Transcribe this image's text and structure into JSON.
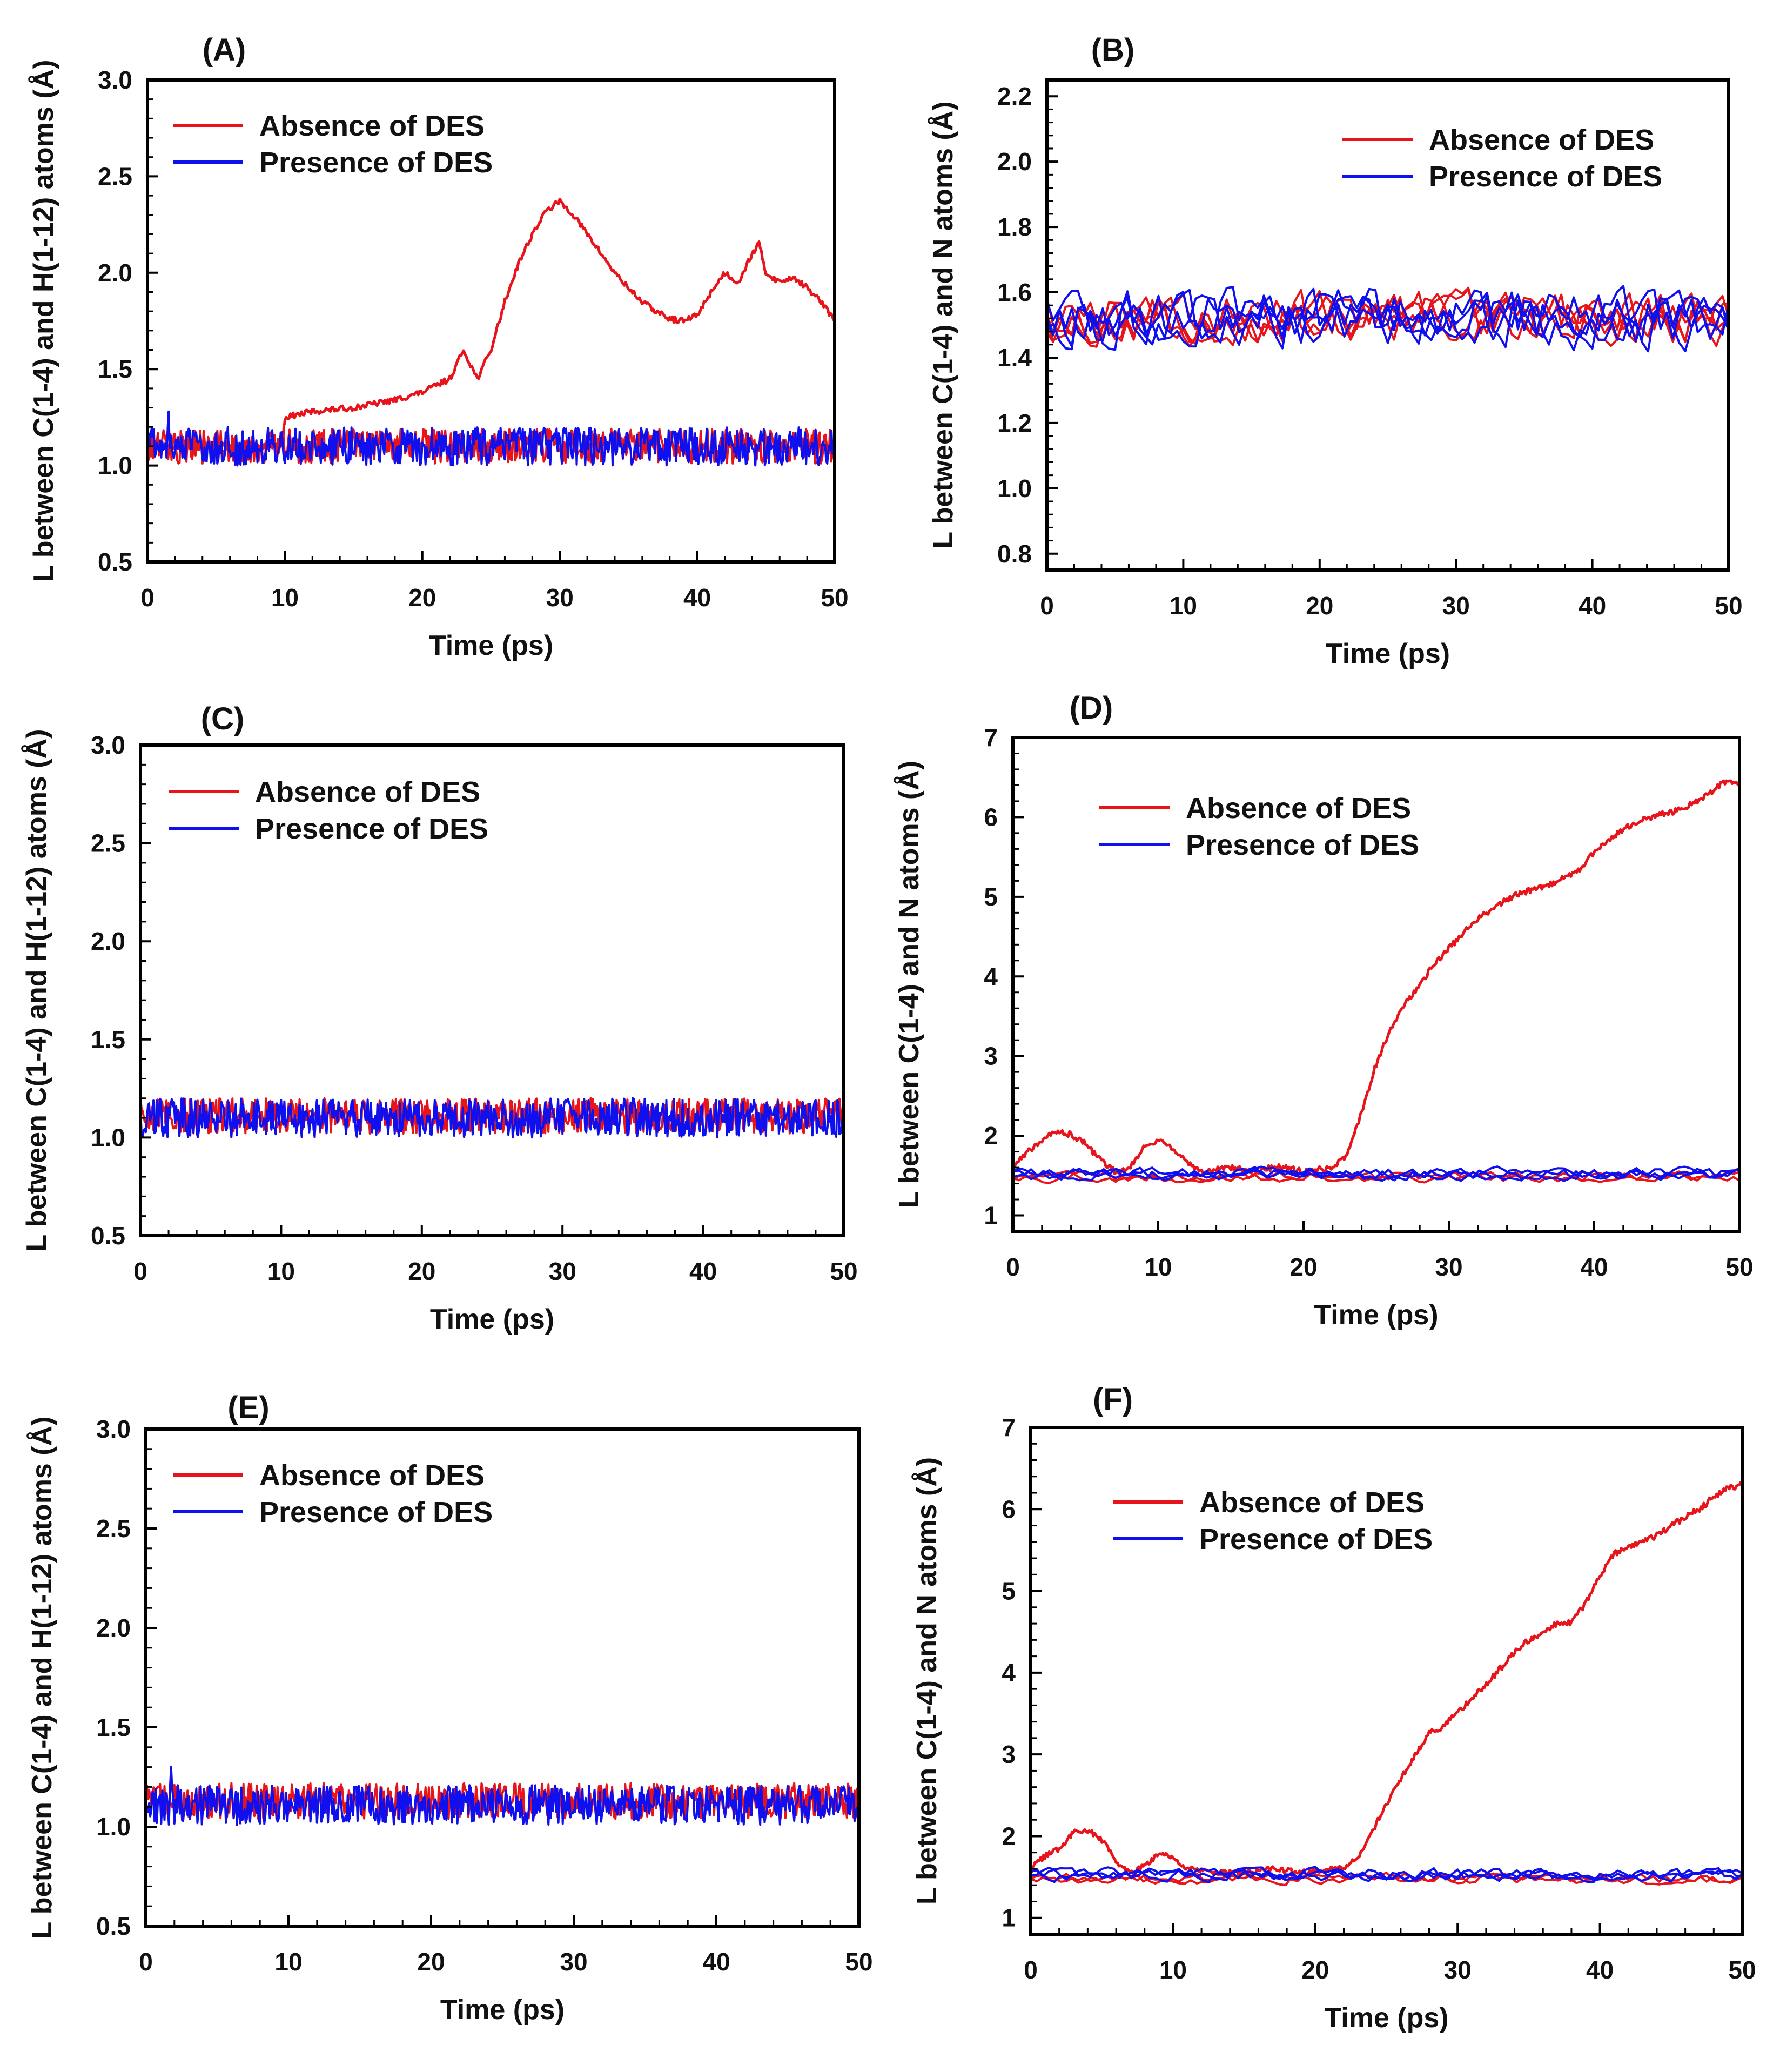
{
  "colors": {
    "absence": "#e8141c",
    "presence": "#1010ee",
    "frame": "#000000"
  },
  "chart_data": [
    {
      "id": "A",
      "type": "line",
      "title": "(A)",
      "xlabel": "Time (ps)",
      "ylabel": "L between C(1-4) and H(1-12) atoms (Å)",
      "xlim": [
        0,
        50
      ],
      "ylim": [
        0.5,
        3.0
      ],
      "xticks": [
        0,
        10,
        20,
        30,
        40,
        50
      ],
      "xtick_labels": [
        "0",
        "10",
        "20",
        "30",
        "40",
        "50"
      ],
      "yticks": [
        0.5,
        1.0,
        1.5,
        2.0,
        2.5,
        3.0
      ],
      "ytick_labels": [
        "0.5",
        "1.0",
        "1.5",
        "2.0",
        "2.5",
        "3.0"
      ],
      "legend_position": "top-left",
      "series": [
        {
          "name": "Absence of DES",
          "color_key": "absence",
          "points": [
            [
              0,
              1.1
            ],
            [
              5,
              1.1
            ],
            [
              9.8,
              1.1
            ],
            [
              10,
              1.25
            ],
            [
              12,
              1.28
            ],
            [
              15,
              1.3
            ],
            [
              18,
              1.34
            ],
            [
              20,
              1.38
            ],
            [
              22,
              1.45
            ],
            [
              23,
              1.6
            ],
            [
              24,
              1.45
            ],
            [
              25,
              1.6
            ],
            [
              26,
              1.85
            ],
            [
              27,
              2.05
            ],
            [
              28,
              2.2
            ],
            [
              29,
              2.32
            ],
            [
              30,
              2.37
            ],
            [
              31,
              2.3
            ],
            [
              32,
              2.2
            ],
            [
              33,
              2.1
            ],
            [
              34,
              2.0
            ],
            [
              35,
              1.92
            ],
            [
              36,
              1.85
            ],
            [
              37,
              1.8
            ],
            [
              38,
              1.76
            ],
            [
              39,
              1.75
            ],
            [
              40,
              1.78
            ],
            [
              41,
              1.9
            ],
            [
              42,
              2.0
            ],
            [
              43,
              1.95
            ],
            [
              44,
              2.1
            ],
            [
              44.5,
              2.15
            ],
            [
              45,
              2.0
            ],
            [
              46,
              1.95
            ],
            [
              47,
              1.98
            ],
            [
              48,
              1.92
            ],
            [
              49,
              1.85
            ],
            [
              50,
              1.75
            ]
          ]
        },
        {
          "name": "Absence of DES",
          "color_key": "absence",
          "noise_mean": 1.1,
          "noise_amp": 0.09,
          "count": 600,
          "width": 4,
          "legend": false
        },
        {
          "name": "Presence of DES",
          "color_key": "presence",
          "noise_mean": 1.1,
          "noise_amp": 0.1,
          "count": 650,
          "width": 4,
          "spike": [
            [
              1.5,
              1.28
            ]
          ]
        }
      ]
    },
    {
      "id": "B",
      "type": "line",
      "title": "(B)",
      "xlabel": "Time (ps)",
      "ylabel": "L between C(1-4) and N atoms (Å)",
      "xlim": [
        0,
        50
      ],
      "ylim": [
        0.75,
        2.25
      ],
      "xticks": [
        0,
        10,
        20,
        30,
        40,
        50
      ],
      "xtick_labels": [
        "0",
        "10",
        "20",
        "30",
        "40",
        "50"
      ],
      "yticks": [
        0.8,
        1.0,
        1.2,
        1.4,
        1.6,
        1.8,
        2.0,
        2.2
      ],
      "ytick_labels": [
        "0.8",
        "1.0",
        "1.2",
        "1.4",
        "1.6",
        "1.8",
        "2.0",
        "2.2"
      ],
      "legend_position": "top-right",
      "series": [
        {
          "name": "Absence of DES",
          "color_key": "absence",
          "noise_mean": 1.52,
          "noise_amp": 0.07,
          "count": 110,
          "width": 4,
          "strands": 4
        },
        {
          "name": "Presence of DES",
          "color_key": "presence",
          "noise_mean": 1.52,
          "noise_amp": 0.08,
          "count": 110,
          "width": 4,
          "strands": 4
        }
      ]
    },
    {
      "id": "C",
      "type": "line",
      "title": "(C)",
      "xlabel": "Time (ps)",
      "ylabel": "L between C(1-4) and H(1-12) atoms (Å)",
      "xlim": [
        0,
        50
      ],
      "ylim": [
        0.5,
        3.0
      ],
      "xticks": [
        0,
        10,
        20,
        30,
        40,
        50
      ],
      "xtick_labels": [
        "0",
        "10",
        "20",
        "30",
        "40",
        "50"
      ],
      "yticks": [
        0.5,
        1.0,
        1.5,
        2.0,
        2.5,
        3.0
      ],
      "ytick_labels": [
        "0.5",
        "1.0",
        "1.5",
        "2.0",
        "2.5",
        "3.0"
      ],
      "legend_position": "top-left",
      "series": [
        {
          "name": "Absence of DES",
          "color_key": "absence",
          "noise_mean": 1.11,
          "noise_amp": 0.09,
          "count": 650,
          "width": 4
        },
        {
          "name": "Presence of DES",
          "color_key": "presence",
          "noise_mean": 1.1,
          "noise_amp": 0.1,
          "count": 650,
          "width": 4
        }
      ]
    },
    {
      "id": "D",
      "type": "line",
      "title": "(D)",
      "xlabel": "Time (ps)",
      "ylabel": "L between C(1-4) and N atoms (Å)",
      "xlim": [
        0,
        50
      ],
      "ylim": [
        0.8,
        7.0
      ],
      "xticks": [
        0,
        10,
        20,
        30,
        40,
        50
      ],
      "xtick_labels": [
        "0",
        "10",
        "20",
        "30",
        "40",
        "50"
      ],
      "yticks": [
        1,
        2,
        3,
        4,
        5,
        6,
        7
      ],
      "ytick_labels": [
        "1",
        "2",
        "3",
        "4",
        "5",
        "6",
        "7"
      ],
      "legend_position": "top-left",
      "series": [
        {
          "name": "Absence of DES",
          "color_key": "absence",
          "points": [
            [
              0,
              1.6
            ],
            [
              1,
              1.8
            ],
            [
              2,
              1.95
            ],
            [
              3,
              2.05
            ],
            [
              4,
              2.02
            ],
            [
              5,
              1.9
            ],
            [
              6,
              1.7
            ],
            [
              7,
              1.55
            ],
            [
              8,
              1.6
            ],
            [
              9,
              1.85
            ],
            [
              10,
              1.95
            ],
            [
              11,
              1.85
            ],
            [
              12,
              1.65
            ],
            [
              13,
              1.55
            ],
            [
              15,
              1.6
            ],
            [
              17,
              1.55
            ],
            [
              18,
              1.62
            ],
            [
              20,
              1.55
            ],
            [
              22,
              1.6
            ],
            [
              23,
              1.75
            ],
            [
              24,
              2.3
            ],
            [
              25,
              2.9
            ],
            [
              26,
              3.35
            ],
            [
              27,
              3.65
            ],
            [
              28,
              3.9
            ],
            [
              29,
              4.15
            ],
            [
              30,
              4.35
            ],
            [
              31,
              4.55
            ],
            [
              32,
              4.72
            ],
            [
              33,
              4.85
            ],
            [
              34,
              4.97
            ],
            [
              35,
              5.05
            ],
            [
              36,
              5.1
            ],
            [
              37,
              5.15
            ],
            [
              38,
              5.25
            ],
            [
              39,
              5.35
            ],
            [
              40,
              5.55
            ],
            [
              41,
              5.72
            ],
            [
              42,
              5.85
            ],
            [
              43,
              5.95
            ],
            [
              44,
              6.0
            ],
            [
              45,
              6.05
            ],
            [
              46,
              6.1
            ],
            [
              47,
              6.2
            ],
            [
              48,
              6.3
            ],
            [
              49,
              6.45
            ],
            [
              50,
              6.4
            ]
          ]
        },
        {
          "name": "Absence of DES",
          "color_key": "absence",
          "noise_mean": 1.48,
          "noise_amp": 0.06,
          "count": 120,
          "width": 4,
          "strands": 2,
          "legend": false
        },
        {
          "name": "Presence of DES",
          "color_key": "presence",
          "noise_mean": 1.52,
          "noise_amp": 0.07,
          "count": 120,
          "width": 4,
          "strands": 3
        }
      ]
    },
    {
      "id": "E",
      "type": "line",
      "title": "(E)",
      "xlabel": "Time (ps)",
      "ylabel": "L between C(1-4) and H(1-12) atoms (Å)",
      "xlim": [
        0,
        50
      ],
      "ylim": [
        0.5,
        3.0
      ],
      "xticks": [
        0,
        10,
        20,
        30,
        40,
        50
      ],
      "xtick_labels": [
        "0",
        "10",
        "20",
        "30",
        "40",
        "50"
      ],
      "yticks": [
        0.5,
        1.0,
        1.5,
        2.0,
        2.5,
        3.0
      ],
      "ytick_labels": [
        "0.5",
        "1.0",
        "1.5",
        "2.0",
        "2.5",
        "3.0"
      ],
      "legend_position": "top-left",
      "series": [
        {
          "name": "Absence of DES",
          "color_key": "absence",
          "noise_mean": 1.13,
          "noise_amp": 0.09,
          "count": 650,
          "width": 4
        },
        {
          "name": "Presence of DES",
          "color_key": "presence",
          "noise_mean": 1.11,
          "noise_amp": 0.1,
          "count": 650,
          "width": 4,
          "spike": [
            [
              1.8,
              1.3
            ]
          ]
        }
      ]
    },
    {
      "id": "F",
      "type": "line",
      "title": "(F)",
      "xlabel": "Time (ps)",
      "ylabel": "L between C(1-4) and N atoms (Å)",
      "xlim": [
        0,
        50
      ],
      "ylim": [
        0.8,
        7.0
      ],
      "xticks": [
        0,
        10,
        20,
        30,
        40,
        50
      ],
      "xtick_labels": [
        "0",
        "10",
        "20",
        "30",
        "40",
        "50"
      ],
      "yticks": [
        1,
        2,
        3,
        4,
        5,
        6,
        7
      ],
      "ytick_labels": [
        "1",
        "2",
        "3",
        "4",
        "5",
        "6",
        "7"
      ],
      "legend_position": "top-left",
      "series": [
        {
          "name": "Absence of DES",
          "color_key": "absence",
          "points": [
            [
              0,
              1.6
            ],
            [
              1,
              1.75
            ],
            [
              2,
              1.85
            ],
            [
              3,
              2.05
            ],
            [
              4,
              2.08
            ],
            [
              5,
              1.95
            ],
            [
              6,
              1.7
            ],
            [
              7,
              1.55
            ],
            [
              8,
              1.65
            ],
            [
              9,
              1.78
            ],
            [
              10,
              1.75
            ],
            [
              11,
              1.6
            ],
            [
              13,
              1.55
            ],
            [
              15,
              1.55
            ],
            [
              17,
              1.6
            ],
            [
              19,
              1.55
            ],
            [
              21,
              1.6
            ],
            [
              22,
              1.6
            ],
            [
              23,
              1.75
            ],
            [
              24,
              2.05
            ],
            [
              25,
              2.4
            ],
            [
              26,
              2.7
            ],
            [
              27,
              3.0
            ],
            [
              28,
              3.25
            ],
            [
              29,
              3.35
            ],
            [
              30,
              3.5
            ],
            [
              31,
              3.7
            ],
            [
              32,
              3.85
            ],
            [
              33,
              4.05
            ],
            [
              34,
              4.25
            ],
            [
              35,
              4.4
            ],
            [
              36,
              4.5
            ],
            [
              37,
              4.6
            ],
            [
              38,
              4.62
            ],
            [
              39,
              4.85
            ],
            [
              40,
              5.2
            ],
            [
              41,
              5.45
            ],
            [
              42,
              5.55
            ],
            [
              43,
              5.6
            ],
            [
              44,
              5.68
            ],
            [
              45,
              5.8
            ],
            [
              46,
              5.9
            ],
            [
              47,
              6.0
            ],
            [
              48,
              6.15
            ],
            [
              49,
              6.25
            ],
            [
              50,
              6.3
            ]
          ]
        },
        {
          "name": "Absence of DES",
          "color_key": "absence",
          "noise_mean": 1.48,
          "noise_amp": 0.06,
          "count": 120,
          "width": 4,
          "strands": 2,
          "legend": false
        },
        {
          "name": "Presence of DES",
          "color_key": "presence",
          "noise_mean": 1.53,
          "noise_amp": 0.07,
          "count": 120,
          "width": 4,
          "strands": 3
        }
      ]
    }
  ]
}
